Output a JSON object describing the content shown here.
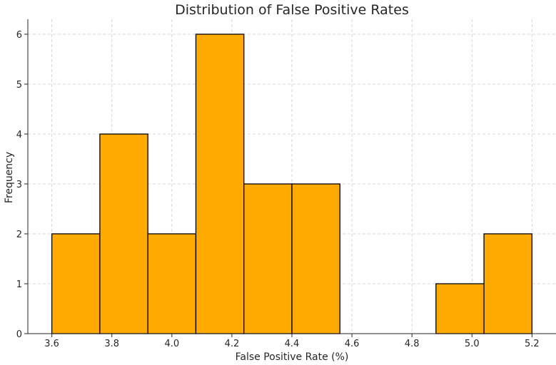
{
  "chart_data": {
    "type": "bar",
    "title": "Distribution of False Positive Rates",
    "xlabel": "False Positive Rate (%)",
    "ylabel": "Frequency",
    "xlim": [
      3.52,
      5.28
    ],
    "ylim": [
      0,
      6.3
    ],
    "x_ticks": [
      3.6,
      3.8,
      4.0,
      4.2,
      4.4,
      4.6,
      4.8,
      5.0,
      5.2
    ],
    "y_ticks": [
      0,
      1,
      2,
      3,
      4,
      5,
      6
    ],
    "bin_edges": [
      3.6,
      3.76,
      3.92,
      4.08,
      4.24,
      4.4,
      4.56,
      4.72,
      4.88,
      5.04,
      5.2
    ],
    "values": [
      2,
      4,
      2,
      6,
      3,
      3,
      0,
      0,
      1,
      2
    ],
    "grid": true,
    "legend": "none",
    "colors": {
      "bar_fill": "#FFAA00",
      "bar_edge": "#000000",
      "grid": "#cccccc",
      "axis": "#262626"
    }
  }
}
